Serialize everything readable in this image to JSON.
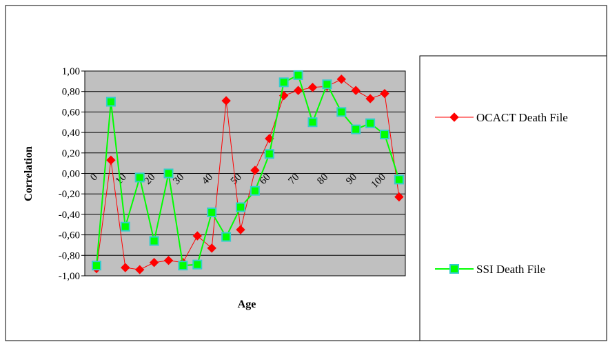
{
  "chart_data": {
    "type": "line",
    "xlabel": "Age",
    "ylabel": "Correlation",
    "x_ticks": [
      "0",
      "10",
      "20",
      "30",
      "40",
      "50",
      "60",
      "70",
      "80",
      "90",
      "100"
    ],
    "y_ticks": [
      "1,00",
      "0,80",
      "0,60",
      "0,40",
      "0,20",
      "0,00",
      "-0,20",
      "-0,40",
      "-0,60",
      "-0,80",
      "-1,00"
    ],
    "ylim": [
      -1.0,
      1.0
    ],
    "grid": true,
    "legend_position": "right",
    "series": [
      {
        "name": "OCACT Death File",
        "color": "#ff0000",
        "marker": "diamond",
        "x": [
          0,
          5,
          10,
          15,
          20,
          25,
          30,
          35,
          40,
          45,
          50,
          55,
          60,
          65,
          70,
          75,
          80,
          85,
          90,
          95,
          100,
          105,
          110
        ],
        "values": [
          -0.93,
          0.13,
          -0.92,
          -0.94,
          -0.87,
          -0.85,
          -0.87,
          -0.61,
          -0.73,
          0.71,
          -0.55,
          0.03,
          0.34,
          0.76,
          0.81,
          0.84,
          0.85,
          0.92,
          0.81,
          0.73,
          0.78,
          -0.23,
          null
        ]
      },
      {
        "name": "SSI Death File",
        "color": "#00ff00",
        "marker": "square",
        "x": [
          0,
          5,
          10,
          15,
          20,
          25,
          30,
          35,
          40,
          45,
          50,
          55,
          60,
          65,
          70,
          75,
          80,
          85,
          90,
          95,
          100,
          105
        ],
        "values": [
          -0.9,
          0.7,
          -0.52,
          -0.04,
          -0.66,
          0.0,
          -0.9,
          -0.89,
          -0.38,
          -0.62,
          -0.33,
          -0.17,
          0.19,
          0.89,
          0.96,
          0.5,
          0.87,
          0.6,
          0.43,
          0.49,
          0.38,
          -0.06
        ]
      }
    ]
  }
}
